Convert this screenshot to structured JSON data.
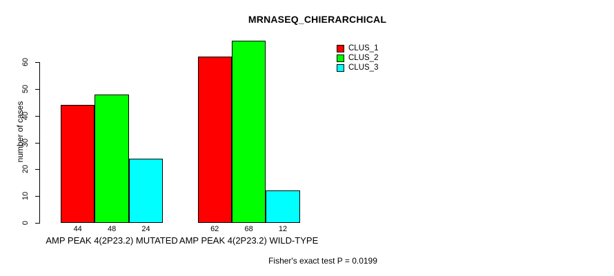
{
  "chart_data": {
    "type": "bar",
    "title": "MRNASEQ_CHIERARCHICAL",
    "xlabel": "",
    "ylabel": "number of cases",
    "groups": [
      "AMP PEAK 4(2P23.2) MUTATED",
      "AMP PEAK 4(2P23.2) WILD-TYPE"
    ],
    "series": [
      {
        "name": "CLUS_1",
        "color": "#ff0000",
        "values": [
          44,
          62
        ]
      },
      {
        "name": "CLUS_2",
        "color": "#00ff00",
        "values": [
          48,
          68
        ]
      },
      {
        "name": "CLUS_3",
        "color": "#00ffff",
        "values": [
          24,
          12
        ]
      }
    ],
    "bar_value_labels": [
      [
        44,
        48,
        24
      ],
      [
        62,
        68,
        12
      ]
    ],
    "yticks": [
      0,
      10,
      20,
      30,
      40,
      50,
      60
    ],
    "ylim": [
      0,
      68
    ],
    "grid": false,
    "legend_position": "top-right",
    "axis_color": "#000000",
    "text_color": "#000000",
    "footnote": "Fisher's exact test P = 0.0199"
  }
}
